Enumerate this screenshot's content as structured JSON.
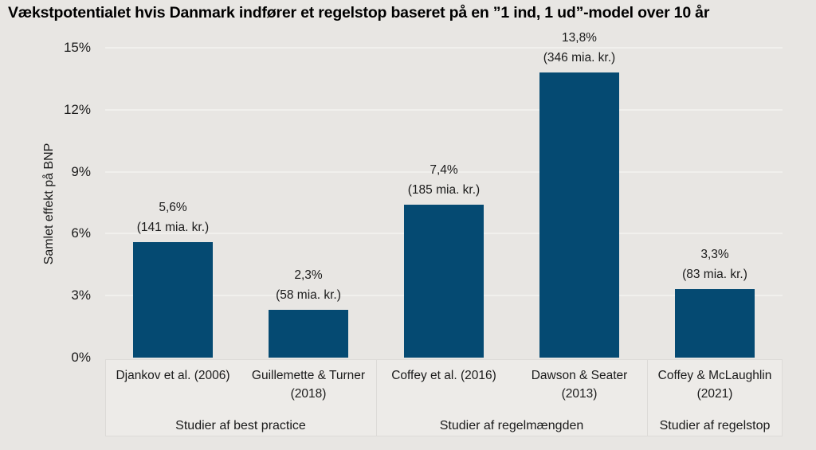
{
  "chart_data": {
    "type": "bar",
    "title": "Vækstpotentialet hvis Danmark indfører et regelstop baseret på en ”1 ind, 1 ud”-model over 10 år",
    "ylabel": "Samlet effekt på BNP",
    "xlabel": "",
    "ylim": [
      0,
      15
    ],
    "grid": "horizontal",
    "legend_position": "none",
    "bar_color": "#054a72",
    "y_ticks": [
      {
        "label": "15%",
        "value": 15
      },
      {
        "label": "12%",
        "value": 12
      },
      {
        "label": "9%",
        "value": 9
      },
      {
        "label": "6%",
        "value": 6
      },
      {
        "label": "3%",
        "value": 3
      },
      {
        "label": "0%",
        "value": 0
      }
    ],
    "bars": [
      {
        "study": "Djankov et al. (2006)",
        "value_pct": 5.6,
        "label_pct": "5,6%",
        "label_amount": "(141 mia. kr.)"
      },
      {
        "study": "Guillemette & Turner (2018)",
        "value_pct": 2.3,
        "label_pct": "2,3%",
        "label_amount": "(58 mia. kr.)"
      },
      {
        "study": "Coffey et al. (2016)",
        "value_pct": 7.4,
        "label_pct": "7,4%",
        "label_amount": "(185 mia. kr.)"
      },
      {
        "study": "Dawson & Seater (2013)",
        "value_pct": 13.8,
        "label_pct": "13,8%",
        "label_amount": "(346 mia. kr.)"
      },
      {
        "study": "Coffey & McLaughlin (2021)",
        "value_pct": 3.3,
        "label_pct": "3,3%",
        "label_amount": "(83 mia. kr.)"
      }
    ],
    "groups": [
      {
        "label": "Studier af best practice",
        "bar_count": 2
      },
      {
        "label": "Studier af regelmængden",
        "bar_count": 2
      },
      {
        "label": "Studier af regelstop",
        "bar_count": 1
      }
    ]
  },
  "colors": {
    "background": "#e8e6e3",
    "bar": "#054a72",
    "gridline": "#f1f0ed",
    "label_area_bg": "#edebe8",
    "label_area_border": "#dcdad7",
    "text": "#1a1a1a"
  }
}
